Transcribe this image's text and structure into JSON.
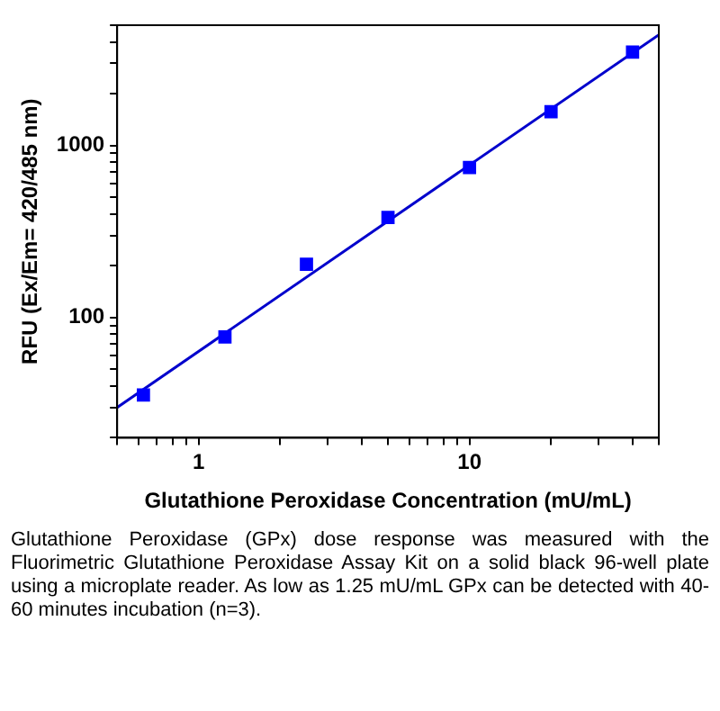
{
  "chart_data": {
    "type": "scatter",
    "xlabel": "Glutathione Peroxidase Concentration (mU/mL)",
    "ylabel": "RFU (Ex/Em= 420/485 nm)",
    "x": [
      0.625,
      1.25,
      2.5,
      5,
      10,
      20,
      40
    ],
    "series": [
      {
        "color": "#0000ff",
        "marker": "square",
        "values": [
          35.5,
          77,
          204,
          382,
          745,
          1570,
          3490
        ]
      },
      {
        "type": "line",
        "color": "#0000cc",
        "marker": "none",
        "line_style": "solid",
        "x": [
          0.5,
          50
        ],
        "values": [
          30,
          4400
        ]
      }
    ],
    "log": "xy",
    "xlim": [
      0.5,
      50
    ],
    "xticks": [
      {
        "value": 0.5,
        "label": null
      },
      {
        "value": 0.6,
        "label": null
      },
      {
        "value": 0.7,
        "label": null
      },
      {
        "value": 0.8,
        "label": null
      },
      {
        "value": 0.9,
        "label": null
      },
      1,
      {
        "value": 2,
        "label": null
      },
      {
        "value": 3,
        "label": null
      },
      {
        "value": 4,
        "label": null
      },
      {
        "value": 5,
        "label": null
      },
      {
        "value": 6,
        "label": null
      },
      {
        "value": 7,
        "label": null
      },
      {
        "value": 8,
        "label": null
      },
      {
        "value": 9,
        "label": null
      },
      10,
      {
        "value": 20,
        "label": null
      },
      {
        "value": 30,
        "label": null
      },
      {
        "value": 40,
        "label": null
      },
      {
        "value": 50,
        "label": null
      }
    ],
    "ylim": [
      20,
      5000
    ],
    "yticks": [
      {
        "value": 20,
        "label": null
      },
      {
        "value": 30,
        "label": null
      },
      {
        "value": 40,
        "label": null
      },
      {
        "value": 50,
        "label": null
      },
      {
        "value": 60,
        "label": null
      },
      {
        "value": 70,
        "label": null
      },
      {
        "value": 80,
        "label": null
      },
      {
        "value": 90,
        "label": null
      },
      100,
      {
        "value": 200,
        "label": null
      },
      {
        "value": 300,
        "label": null
      },
      {
        "value": 400,
        "label": null
      },
      {
        "value": 500,
        "label": null
      },
      {
        "value": 600,
        "label": null
      },
      {
        "value": 700,
        "label": null
      },
      {
        "value": 800,
        "label": null
      },
      {
        "value": 900,
        "label": null
      },
      1000,
      {
        "value": 2000,
        "label": null
      },
      {
        "value": 3000,
        "label": null
      },
      {
        "value": 4000,
        "label": null
      },
      {
        "value": 5000,
        "label": null
      }
    ],
    "grid": false,
    "legend": false,
    "annotations": [
      "Glutathione Peroxidase (GPx) dose response was measured with the Fluorimetric Glutathione Peroxidase Assay Kit on a solid black 96-well plate using a microplate reader. As low as 1.25 mU/mL GPx can be detected with 40-60 minutes incubation (n=3)."
    ]
  }
}
